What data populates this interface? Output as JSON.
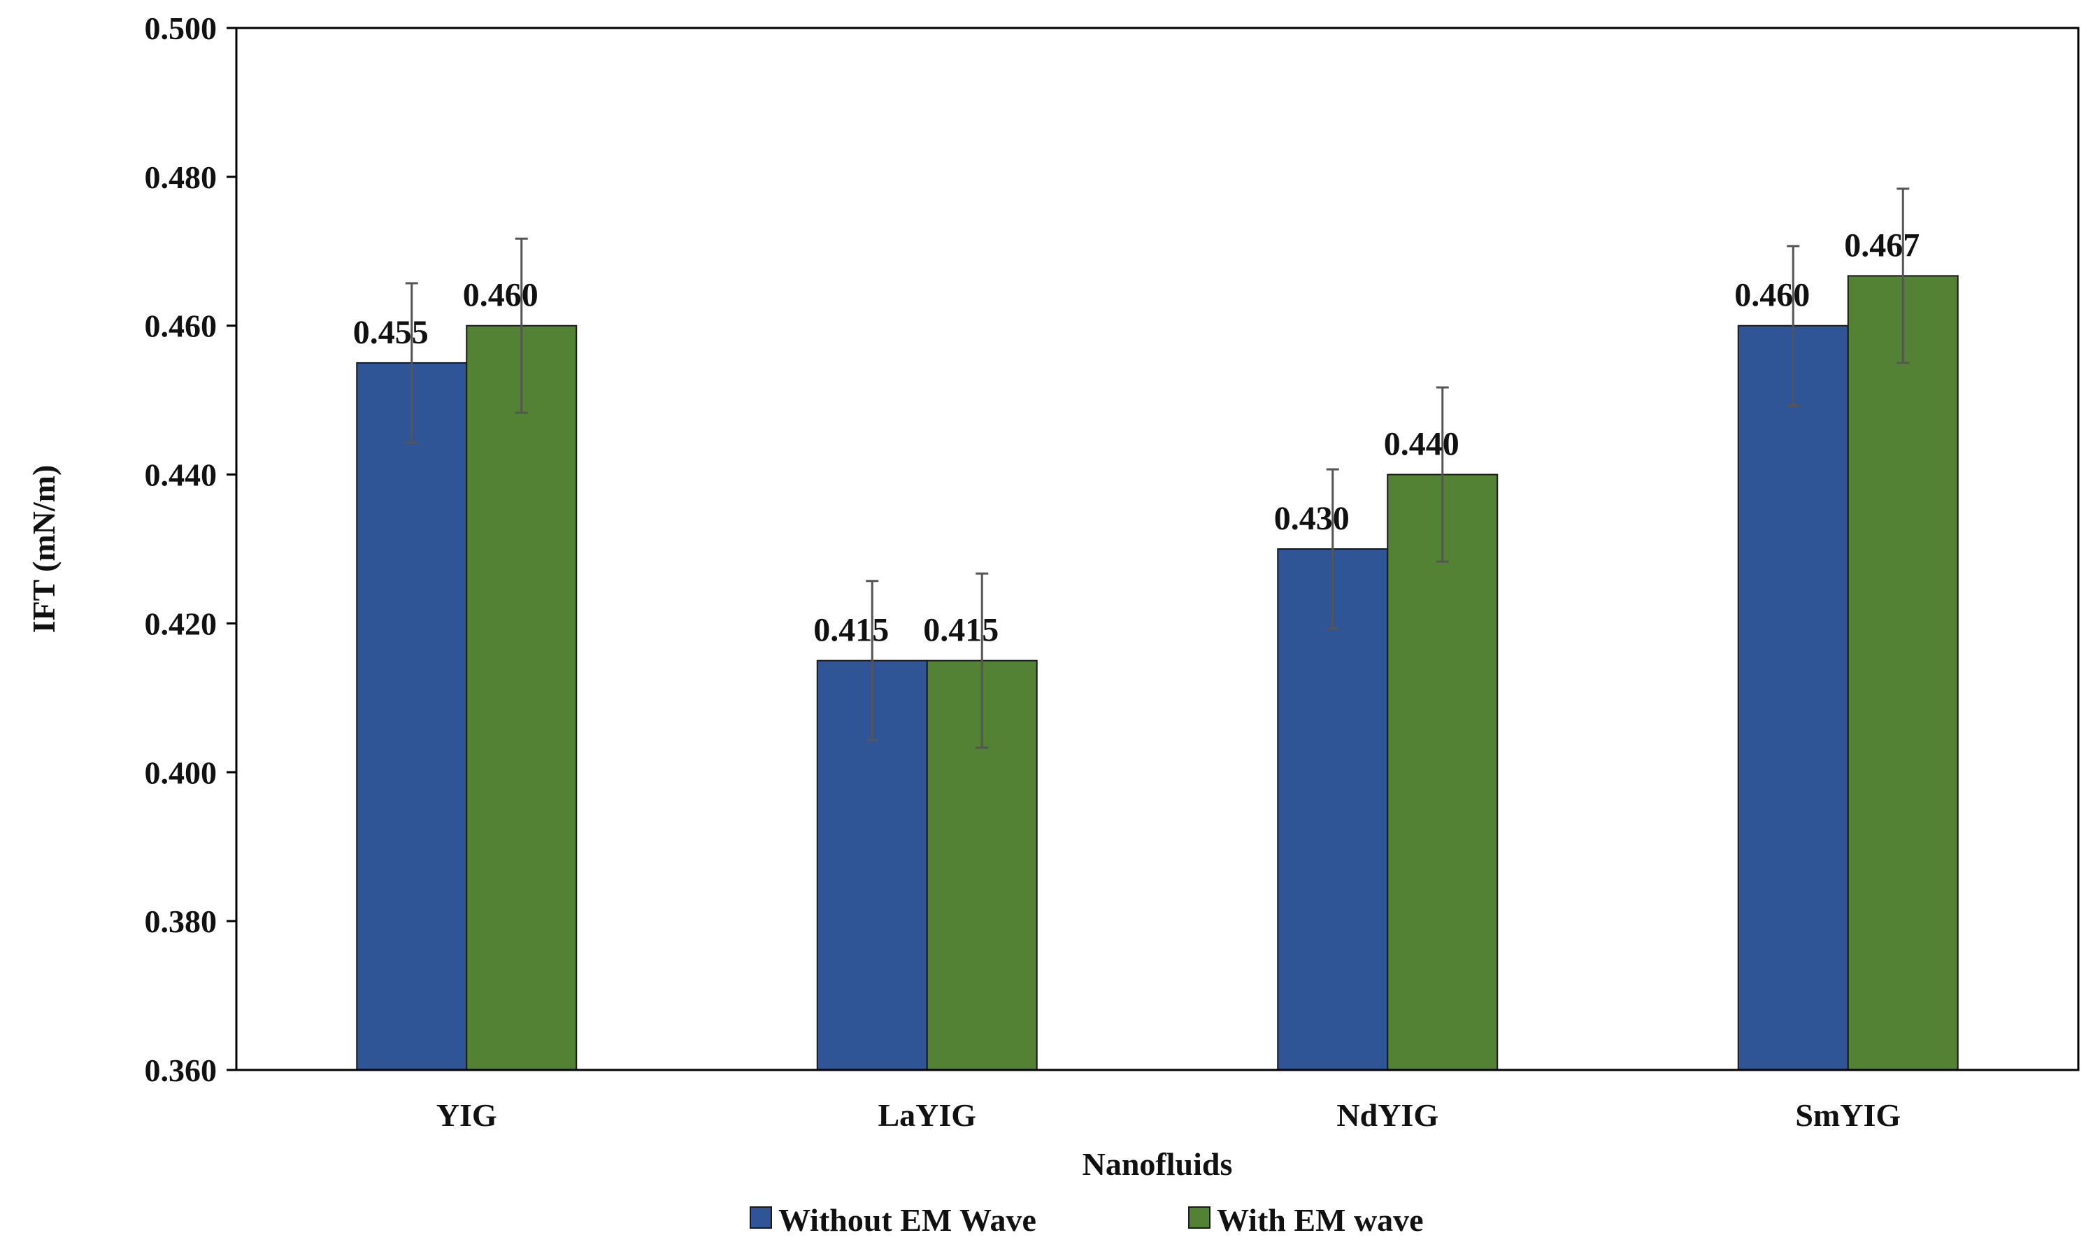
{
  "chart_data": {
    "type": "bar",
    "title": "",
    "xlabel": "Nanofluids",
    "ylabel": "IFT (mN/m)",
    "categories": [
      "YIG",
      "LaYIG",
      "NdYIG",
      "SmYIG"
    ],
    "ylim": [
      0.36,
      0.5
    ],
    "yticks": [
      0.36,
      0.38,
      0.4,
      0.42,
      0.44,
      0.46,
      0.48,
      0.5
    ],
    "ytick_labels": [
      "0.360",
      "0.380",
      "0.400",
      "0.420",
      "0.440",
      "0.460",
      "0.480",
      "0.500"
    ],
    "grid": false,
    "legend_position": "bottom-center",
    "series": [
      {
        "name": "Without EM Wave",
        "color": "#2F5597",
        "values": [
          0.455,
          0.415,
          0.43,
          0.46
        ],
        "labels": [
          "0.455",
          "0.415",
          "0.430",
          "0.460"
        ],
        "error": [
          0.0107,
          0.0107,
          0.0107,
          0.0107
        ]
      },
      {
        "name": "With EM wave",
        "color": "#548235",
        "values": [
          0.46,
          0.415,
          0.44,
          0.4667
        ],
        "labels": [
          "0.460",
          "0.415",
          "0.440",
          "0.467"
        ],
        "error": [
          0.0117,
          0.0117,
          0.0117,
          0.0117
        ]
      }
    ]
  }
}
